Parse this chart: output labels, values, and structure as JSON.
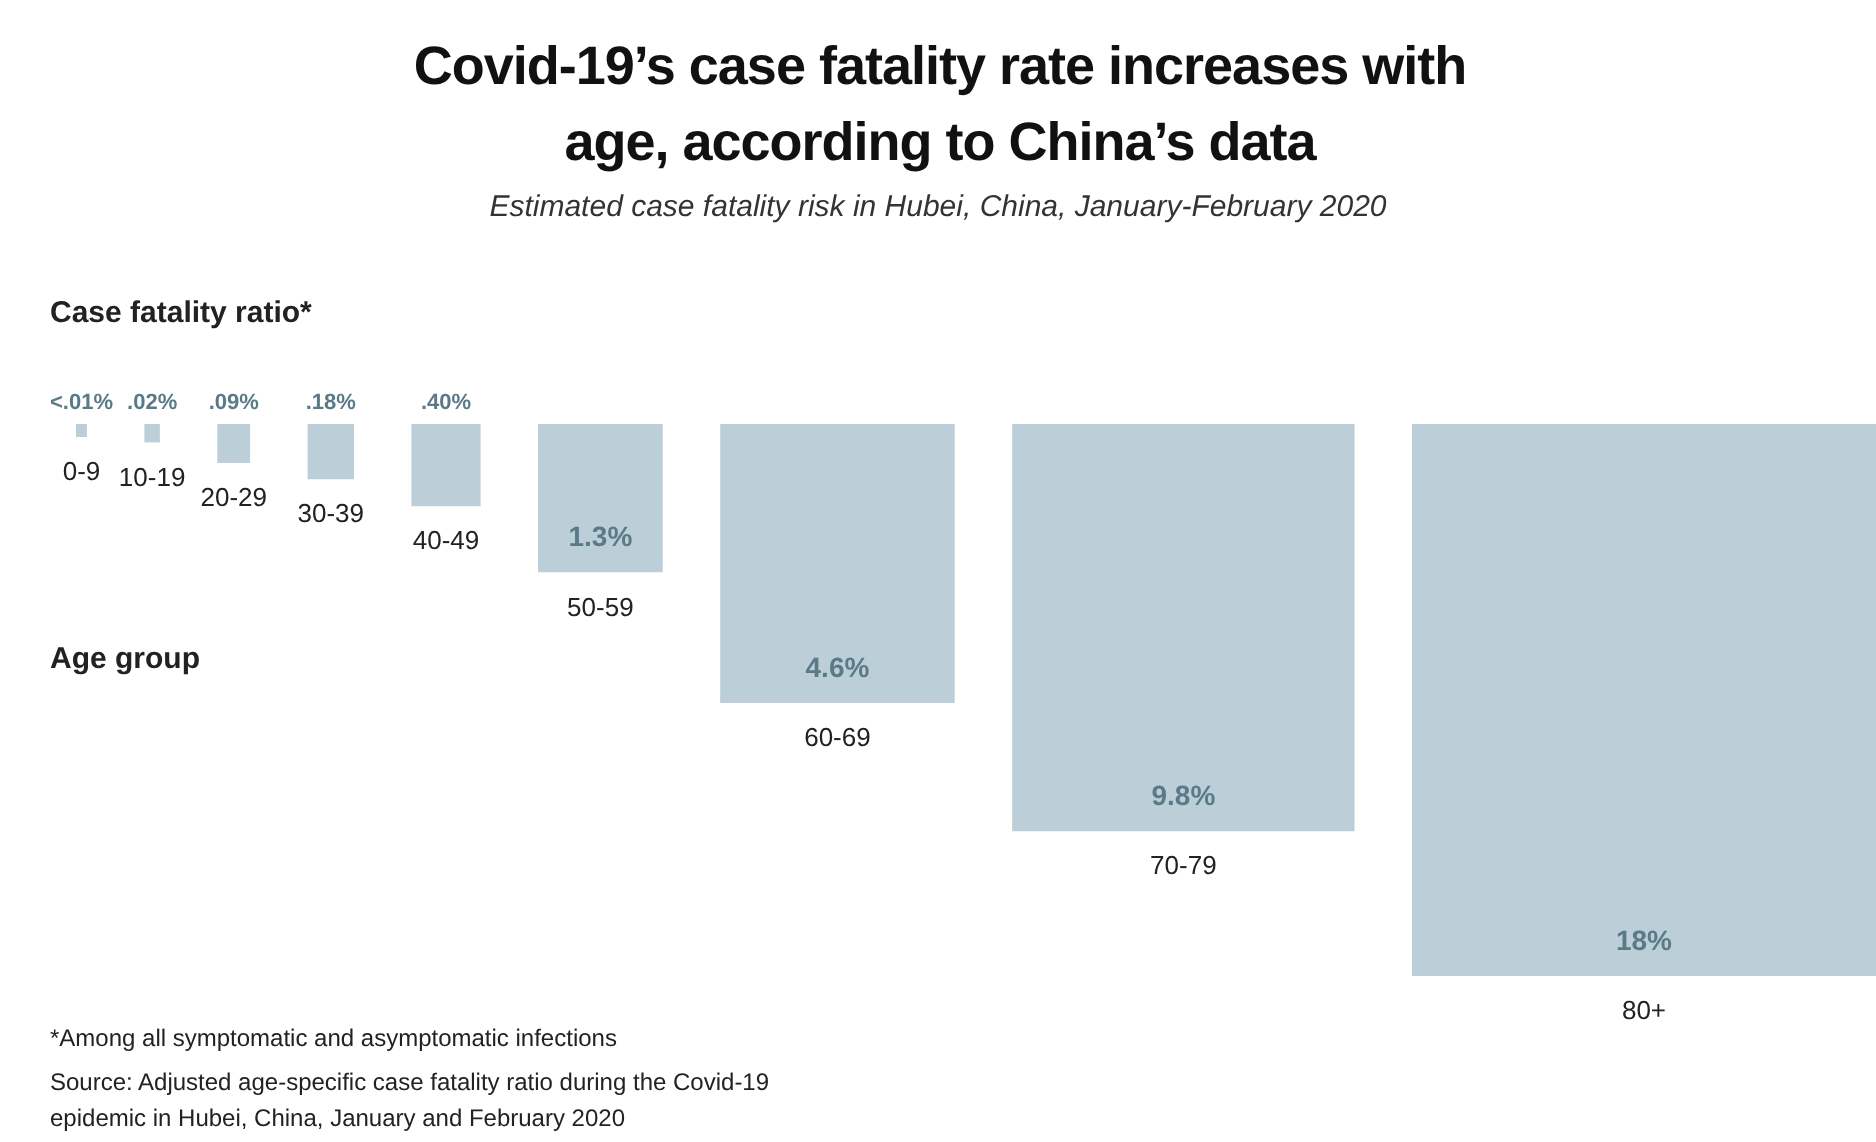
{
  "chart_data": {
    "type": "other",
    "title": "Covid-19’s case fatality rate increases with age, according to China’s data",
    "subtitle": "Estimated case fatality risk in Hubei, China, January-February 2020",
    "ylabel": "Case fatality ratio*",
    "xlabel": "Age group",
    "categories": [
      "0-9",
      "10-19",
      "20-29",
      "30-39",
      "40-49",
      "50-59",
      "60-69",
      "70-79",
      "80+"
    ],
    "values": [
      0.01,
      0.02,
      0.09,
      0.18,
      0.4,
      1.3,
      4.6,
      9.8,
      18
    ],
    "value_labels": [
      "<.01%",
      ".02%",
      ".09%",
      ".18%",
      ".40%",
      "1.3%",
      "4.6%",
      "9.8%",
      "18%"
    ],
    "color": "#bccfd8",
    "annotations": [
      "*Among all symptomatic and asymptomatic infections",
      "Source: Adjusted age-specific case fatality ratio during the Covid-19 epidemic in Hubei, China, January and February 2020"
    ]
  }
}
